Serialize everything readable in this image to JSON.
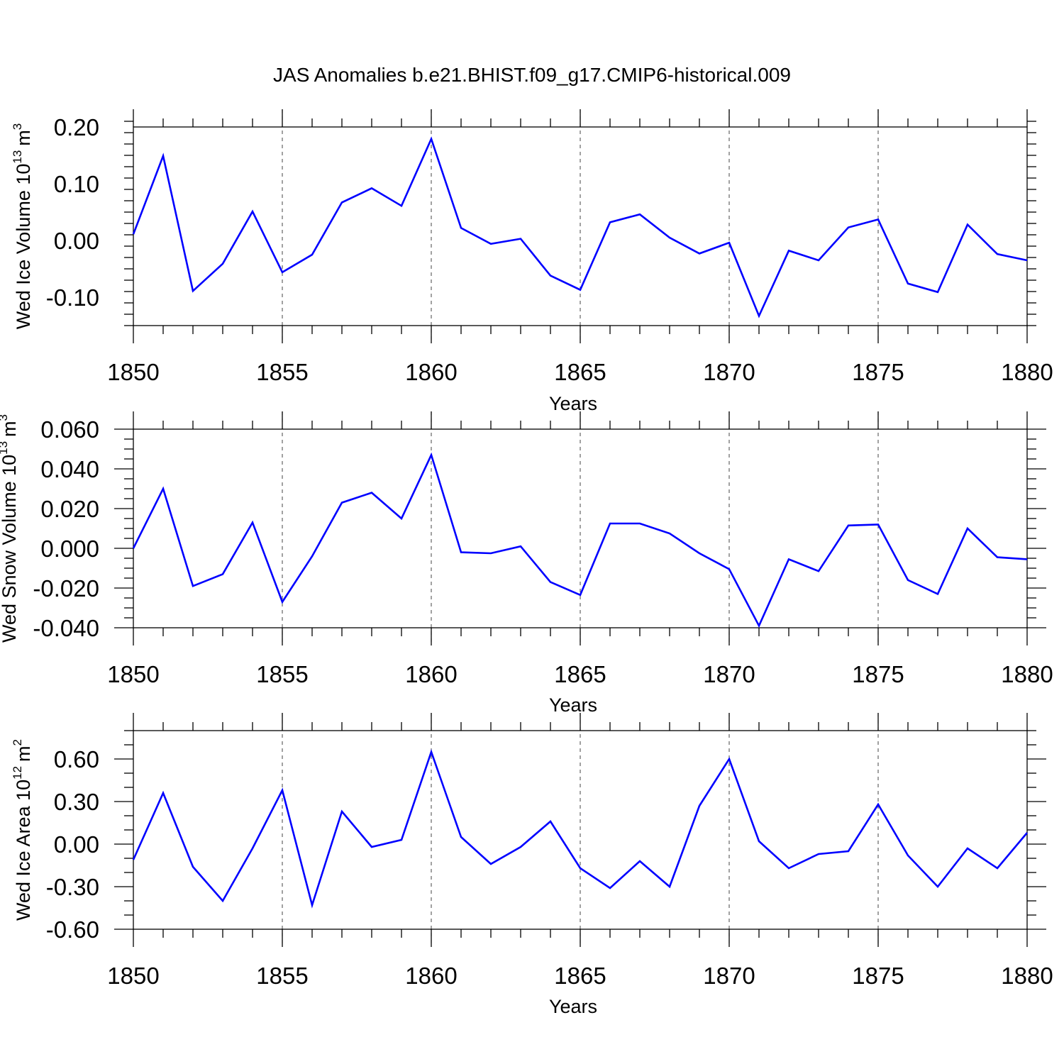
{
  "title": "JAS Anomalies b.e21.BHIST.f09_g17.CMIP6-historical.009",
  "colors": {
    "series": "#0000ff",
    "axes": "#000000",
    "grid": "#555555"
  },
  "chart_data": [
    {
      "type": "line",
      "ylabel": {
        "main": "Wed Ice Volume 10",
        "exponent": "13",
        "unit": "m",
        "unit_exponent": "3"
      },
      "xlabel": "Years",
      "xlim": [
        1850,
        1880
      ],
      "ylim": [
        -0.15,
        0.2
      ],
      "x_major_ticks": [
        1850,
        1855,
        1860,
        1865,
        1870,
        1875,
        1880
      ],
      "x_tick_labels": [
        "1850",
        "1855",
        "1860",
        "1865",
        "1870",
        "1875",
        "1880"
      ],
      "y_major_ticks": [
        -0.1,
        0.0,
        0.1,
        0.2
      ],
      "y_tick_labels": [
        "-0.10",
        "0.00",
        "0.10",
        "0.20"
      ],
      "y_minor_step": 0.02,
      "grid": "vertical dashed at major x ticks",
      "x": [
        1850,
        1851,
        1852,
        1853,
        1854,
        1855,
        1856,
        1857,
        1858,
        1859,
        1860,
        1861,
        1862,
        1863,
        1864,
        1865,
        1866,
        1867,
        1868,
        1869,
        1870,
        1871,
        1872,
        1873,
        1874,
        1875,
        1876,
        1877,
        1878,
        1879,
        1880
      ],
      "values": [
        0.011,
        0.149,
        -0.089,
        -0.041,
        0.051,
        -0.056,
        -0.025,
        0.067,
        0.092,
        0.061,
        0.179,
        0.022,
        -0.006,
        0.003,
        -0.062,
        -0.087,
        0.032,
        0.046,
        0.005,
        -0.023,
        -0.004,
        -0.133,
        -0.018,
        -0.035,
        0.023,
        0.037,
        -0.076,
        -0.091,
        0.028,
        -0.024,
        -0.035
      ]
    },
    {
      "type": "line",
      "ylabel": {
        "main": "Wed Snow Volume 10",
        "exponent": "13",
        "unit": "m",
        "unit_exponent": "3"
      },
      "xlabel": "Years",
      "xlim": [
        1850,
        1880
      ],
      "ylim": [
        -0.04,
        0.06
      ],
      "x_major_ticks": [
        1850,
        1855,
        1860,
        1865,
        1870,
        1875,
        1880
      ],
      "x_tick_labels": [
        "1850",
        "1855",
        "1860",
        "1865",
        "1870",
        "1875",
        "1880"
      ],
      "y_major_ticks": [
        -0.04,
        -0.02,
        0.0,
        0.02,
        0.04,
        0.06
      ],
      "y_tick_labels": [
        "-0.040",
        "-0.020",
        "0.000",
        "0.020",
        "0.040",
        "0.060"
      ],
      "y_minor_step": 0.005,
      "grid": "vertical dashed at major x ticks",
      "x": [
        1850,
        1851,
        1852,
        1853,
        1854,
        1855,
        1856,
        1857,
        1858,
        1859,
        1860,
        1861,
        1862,
        1863,
        1864,
        1865,
        1866,
        1867,
        1868,
        1869,
        1870,
        1871,
        1872,
        1873,
        1874,
        1875,
        1876,
        1877,
        1878,
        1879,
        1880
      ],
      "values": [
        0.0,
        0.03,
        -0.019,
        -0.013,
        0.013,
        -0.027,
        -0.004,
        0.023,
        0.028,
        0.015,
        0.047,
        -0.002,
        -0.0025,
        0.001,
        -0.017,
        -0.0235,
        0.0125,
        0.0125,
        0.0075,
        -0.0025,
        -0.0105,
        -0.039,
        -0.0055,
        -0.0115,
        0.0115,
        0.012,
        -0.016,
        -0.023,
        0.01,
        -0.0045,
        -0.0055
      ]
    },
    {
      "type": "line",
      "ylabel": {
        "main": "Wed Ice Area 10",
        "exponent": "12",
        "unit": "m",
        "unit_exponent": "2"
      },
      "xlabel": "Years",
      "xlim": [
        1850,
        1880
      ],
      "ylim": [
        -0.6,
        0.8
      ],
      "x_major_ticks": [
        1850,
        1855,
        1860,
        1865,
        1870,
        1875,
        1880
      ],
      "x_tick_labels": [
        "1850",
        "1855",
        "1860",
        "1865",
        "1870",
        "1875",
        "1880"
      ],
      "y_major_ticks": [
        -0.6,
        -0.3,
        0.0,
        0.3,
        0.6
      ],
      "y_tick_labels": [
        "-0.60",
        "-0.30",
        "0.00",
        "0.30",
        "0.60"
      ],
      "y_minor_step": 0.1,
      "grid": "vertical dashed at major x ticks",
      "x": [
        1850,
        1851,
        1852,
        1853,
        1854,
        1855,
        1856,
        1857,
        1858,
        1859,
        1860,
        1861,
        1862,
        1863,
        1864,
        1865,
        1866,
        1867,
        1868,
        1869,
        1870,
        1871,
        1872,
        1873,
        1874,
        1875,
        1876,
        1877,
        1878,
        1879,
        1880
      ],
      "values": [
        -0.11,
        0.36,
        -0.16,
        -0.4,
        -0.03,
        0.38,
        -0.43,
        0.23,
        -0.02,
        0.03,
        0.65,
        0.05,
        -0.14,
        -0.02,
        0.16,
        -0.17,
        -0.31,
        -0.12,
        -0.3,
        0.27,
        0.6,
        0.02,
        -0.17,
        -0.07,
        -0.05,
        0.28,
        -0.08,
        -0.3,
        -0.03,
        -0.17,
        0.08
      ]
    }
  ]
}
